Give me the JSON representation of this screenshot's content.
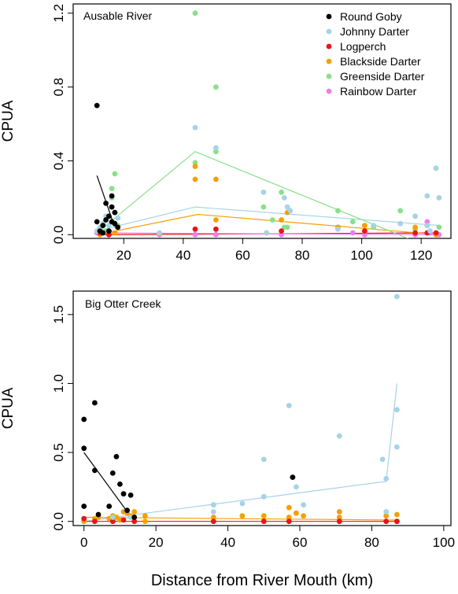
{
  "figure": {
    "xlabel": "Distance from River Mouth (km)"
  },
  "legend": [
    {
      "name": "Round Goby",
      "color": "#000000"
    },
    {
      "name": "Johnny Darter",
      "color": "#a6d3e6"
    },
    {
      "name": "Logperch",
      "color": "#e8141c"
    },
    {
      "name": "Blackside Darter",
      "color": "#f5a000"
    },
    {
      "name": "Greenside Darter",
      "color": "#8ae08a"
    },
    {
      "name": "Rainbow Darter",
      "color": "#ef7cef"
    }
  ],
  "chart_data": [
    {
      "type": "scatter",
      "title": "Ausable River",
      "ylabel": "CPUA",
      "xlim": [
        3,
        130
      ],
      "ylim": [
        -0.02,
        1.25
      ],
      "xticks": [
        "20",
        "40",
        "60",
        "80",
        "100",
        "120"
      ],
      "yticks": [
        "0.0",
        "0.4",
        "0.8",
        "1.2"
      ],
      "series": [
        {
          "name": "Round Goby",
          "color": "#000000",
          "points": [
            [
              11,
              0.7
            ],
            [
              11,
              0.07
            ],
            [
              12,
              0.02
            ],
            [
              13,
              0.05
            ],
            [
              14,
              0.17
            ],
            [
              14,
              0.08
            ],
            [
              15,
              0.1
            ],
            [
              15,
              0.02
            ],
            [
              16,
              0.21
            ],
            [
              16,
              0.15
            ],
            [
              16,
              0.07
            ],
            [
              17,
              0.12
            ],
            [
              17,
              0.06
            ],
            [
              18,
              0.04
            ],
            [
              13,
              0.01
            ]
          ],
          "fit": [
            [
              11,
              0.32
            ],
            [
              17,
              0.04
            ]
          ]
        },
        {
          "name": "Johnny Darter",
          "color": "#a6d3e6",
          "points": [
            [
              11,
              0.02
            ],
            [
              12,
              0.04
            ],
            [
              13,
              0.06
            ],
            [
              14,
              0.1
            ],
            [
              15,
              0.05
            ],
            [
              16,
              0.15
            ],
            [
              17,
              0.12
            ],
            [
              18,
              0.09
            ],
            [
              32,
              0.01
            ],
            [
              44,
              0.58
            ],
            [
              51,
              0.47
            ],
            [
              67,
              0.23
            ],
            [
              68,
              0.01
            ],
            [
              74,
              0.2
            ],
            [
              75,
              0.15
            ],
            [
              76,
              0.13
            ],
            [
              92,
              0.03
            ],
            [
              104,
              0.05
            ],
            [
              113,
              0.06
            ],
            [
              118,
              0.1
            ],
            [
              122,
              0.21
            ],
            [
              125,
              0.36
            ],
            [
              126,
              0.2
            ],
            [
              122,
              0.05
            ],
            [
              123,
              0.02
            ]
          ],
          "fit": [
            [
              11,
              0.02
            ],
            [
              44,
              0.15
            ],
            [
              126,
              0.05
            ]
          ]
        },
        {
          "name": "Logperch",
          "color": "#e8141c",
          "points": [
            [
              12,
              0.01
            ],
            [
              15,
              0.0
            ],
            [
              44,
              0.03
            ],
            [
              51,
              0.03
            ],
            [
              73,
              0.02
            ],
            [
              101,
              0.02
            ],
            [
              118,
              0.01
            ],
            [
              122,
              0.01
            ],
            [
              125,
              0.01
            ]
          ],
          "fit": [
            [
              11,
              0.0
            ],
            [
              126,
              0.01
            ]
          ]
        },
        {
          "name": "Blackside Darter",
          "color": "#f5a000",
          "points": [
            [
              12,
              0.0
            ],
            [
              15,
              0.01
            ],
            [
              17,
              0.01
            ],
            [
              44,
              0.3
            ],
            [
              44,
              0.37
            ],
            [
              51,
              0.3
            ],
            [
              51,
              0.08
            ],
            [
              68,
              0.01
            ],
            [
              73,
              0.08
            ],
            [
              75,
              0.12
            ],
            [
              92,
              0.04
            ],
            [
              101,
              0.05
            ],
            [
              118,
              0.04
            ],
            [
              122,
              0.05
            ],
            [
              125,
              0.0
            ]
          ],
          "fit": [
            [
              11,
              0.0
            ],
            [
              45,
              0.11
            ],
            [
              126,
              0.0
            ]
          ]
        },
        {
          "name": "Greenside Darter",
          "color": "#8ae08a",
          "points": [
            [
              12,
              0.03
            ],
            [
              13,
              0.01
            ],
            [
              14,
              0.02
            ],
            [
              15,
              0.02
            ],
            [
              16,
              0.25
            ],
            [
              16,
              0.2
            ],
            [
              17,
              0.33
            ],
            [
              17,
              0.06
            ],
            [
              18,
              0.05
            ],
            [
              44,
              1.2
            ],
            [
              44,
              0.39
            ],
            [
              51,
              0.8
            ],
            [
              51,
              0.45
            ],
            [
              67,
              0.15
            ],
            [
              70,
              0.08
            ],
            [
              73,
              0.23
            ],
            [
              74,
              0.04
            ],
            [
              75,
              0.04
            ],
            [
              92,
              0.13
            ],
            [
              97,
              0.07
            ],
            [
              104,
              0.04
            ],
            [
              113,
              0.13
            ],
            [
              118,
              0.03
            ],
            [
              126,
              0.04
            ]
          ],
          "fit": [
            [
              11,
              0.01
            ],
            [
              44,
              0.45
            ],
            [
              120,
              -0.05
            ]
          ]
        },
        {
          "name": "Rainbow Darter",
          "color": "#ef7cef",
          "points": [
            [
              11,
              0.01
            ],
            [
              13,
              0.01
            ],
            [
              15,
              0.0
            ],
            [
              17,
              0.01
            ],
            [
              32,
              0.0
            ],
            [
              44,
              0.0
            ],
            [
              51,
              0.0
            ],
            [
              73,
              0.0
            ],
            [
              92,
              0.04
            ],
            [
              97,
              0.01
            ],
            [
              101,
              0.0
            ],
            [
              118,
              0.0
            ],
            [
              122,
              0.07
            ],
            [
              123,
              0.01
            ],
            [
              126,
              0.0
            ]
          ],
          "fit": [
            [
              11,
              0.01
            ],
            [
              126,
              0.0
            ]
          ]
        }
      ]
    },
    {
      "type": "scatter",
      "title": "Big Otter Creek",
      "ylabel": "CPUA",
      "xlim": [
        -3,
        102
      ],
      "ylim": [
        -0.03,
        1.67
      ],
      "xticks": [
        "0",
        "20",
        "40",
        "60",
        "80",
        "100"
      ],
      "yticks": [
        "0.0",
        "0.5",
        "1.0",
        "1.5"
      ],
      "series": [
        {
          "name": "Round Goby",
          "color": "#000000",
          "points": [
            [
              0,
              0.74
            ],
            [
              0,
              0.53
            ],
            [
              0,
              0.11
            ],
            [
              3,
              0.86
            ],
            [
              3,
              0.37
            ],
            [
              4,
              0.05
            ],
            [
              7,
              0.11
            ],
            [
              8,
              0.35
            ],
            [
              9,
              0.47
            ],
            [
              10,
              0.27
            ],
            [
              11,
              0.2
            ],
            [
              12,
              0.08
            ],
            [
              13,
              0.19
            ],
            [
              14,
              0.03
            ],
            [
              58,
              0.32
            ]
          ],
          "fit": [
            [
              0,
              0.5
            ],
            [
              14,
              0.0
            ]
          ]
        },
        {
          "name": "Johnny Darter",
          "color": "#a6d3e6",
          "points": [
            [
              8,
              0.03
            ],
            [
              13,
              0.03
            ],
            [
              36,
              0.12
            ],
            [
              36,
              0.07
            ],
            [
              44,
              0.13
            ],
            [
              50,
              0.45
            ],
            [
              50,
              0.18
            ],
            [
              57,
              0.84
            ],
            [
              59,
              0.25
            ],
            [
              61,
              0.12
            ],
            [
              71,
              0.62
            ],
            [
              83,
              0.45
            ],
            [
              84,
              0.07
            ],
            [
              84,
              0.31
            ],
            [
              87,
              1.63
            ],
            [
              87,
              0.81
            ],
            [
              87,
              0.54
            ]
          ],
          "fit": [
            [
              0,
              0.0
            ],
            [
              84,
              0.29
            ],
            [
              87,
              1.0
            ]
          ]
        },
        {
          "name": "Logperch",
          "color": "#e8141c",
          "points": [
            [
              0,
              0.02
            ],
            [
              3,
              0.0
            ],
            [
              8,
              0.0
            ],
            [
              11,
              0.01
            ],
            [
              14,
              0.0
            ],
            [
              36,
              0.0
            ],
            [
              50,
              0.0
            ],
            [
              57,
              0.0
            ],
            [
              71,
              0.0
            ],
            [
              84,
              0.0
            ],
            [
              87,
              0.0
            ]
          ],
          "fit": [
            [
              0,
              0.0
            ],
            [
              87,
              0.0
            ]
          ]
        },
        {
          "name": "Blackside Darter",
          "color": "#f5a000",
          "points": [
            [
              0,
              0.0
            ],
            [
              3,
              0.02
            ],
            [
              4,
              0.03
            ],
            [
              7,
              0.02
            ],
            [
              8,
              0.04
            ],
            [
              9,
              0.03
            ],
            [
              10,
              0.01
            ],
            [
              11,
              0.07
            ],
            [
              12,
              0.06
            ],
            [
              13,
              0.04
            ],
            [
              14,
              0.07
            ],
            [
              17,
              0.04
            ],
            [
              17,
              0.0
            ],
            [
              36,
              0.03
            ],
            [
              44,
              0.04
            ],
            [
              50,
              0.04
            ],
            [
              50,
              0.0
            ],
            [
              57,
              0.1
            ],
            [
              57,
              0.03
            ],
            [
              59,
              0.06
            ],
            [
              61,
              0.04
            ],
            [
              71,
              0.07
            ],
            [
              71,
              0.03
            ],
            [
              84,
              0.04
            ],
            [
              84,
              0.0
            ],
            [
              87,
              0.05
            ],
            [
              87,
              0.0
            ]
          ],
          "fit": [
            [
              0,
              0.03
            ],
            [
              87,
              0.01
            ]
          ]
        }
      ]
    }
  ]
}
